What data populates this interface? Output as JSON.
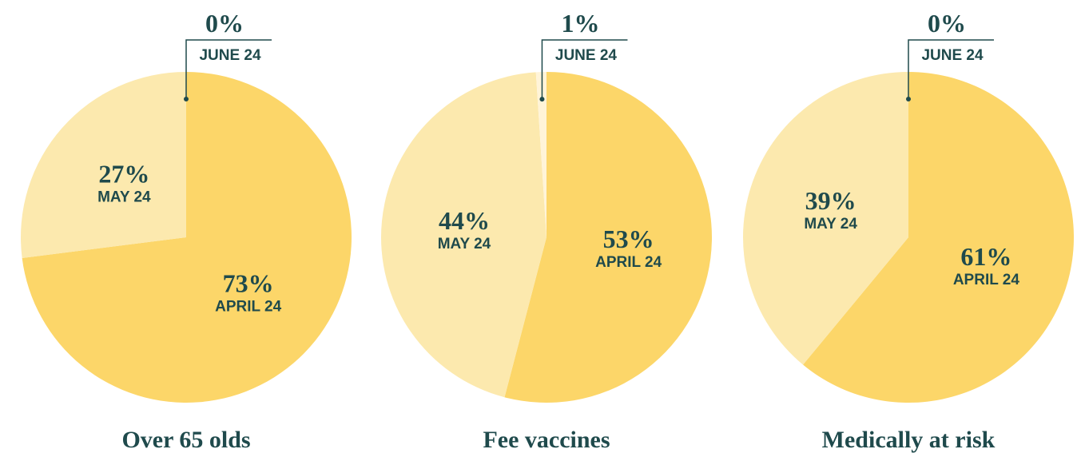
{
  "chart_data": [
    {
      "type": "pie",
      "title": "Over 65 olds",
      "categories": [
        "APRIL 24",
        "MAY 24",
        "JUNE 24"
      ],
      "values": [
        73,
        27,
        0
      ],
      "value_labels": [
        "73%",
        "27%",
        "0%"
      ],
      "colors": [
        "#fcd669",
        "#fce9ae",
        "#fff4d8"
      ]
    },
    {
      "type": "pie",
      "title": "Fee vaccines",
      "categories": [
        "APRIL 24",
        "MAY 24",
        "JUNE 24"
      ],
      "values": [
        53,
        44,
        1
      ],
      "value_labels": [
        "53%",
        "44%",
        "1%"
      ],
      "colors": [
        "#fcd669",
        "#fce9ae",
        "#fff4d8"
      ]
    },
    {
      "type": "pie",
      "title": "Medically at risk",
      "categories": [
        "APRIL 24",
        "MAY 24",
        "JUNE 24"
      ],
      "values": [
        61,
        39,
        0
      ],
      "value_labels": [
        "61%",
        "39%",
        "0%"
      ],
      "colors": [
        "#fcd669",
        "#fce9ae",
        "#fff4d8"
      ]
    }
  ]
}
